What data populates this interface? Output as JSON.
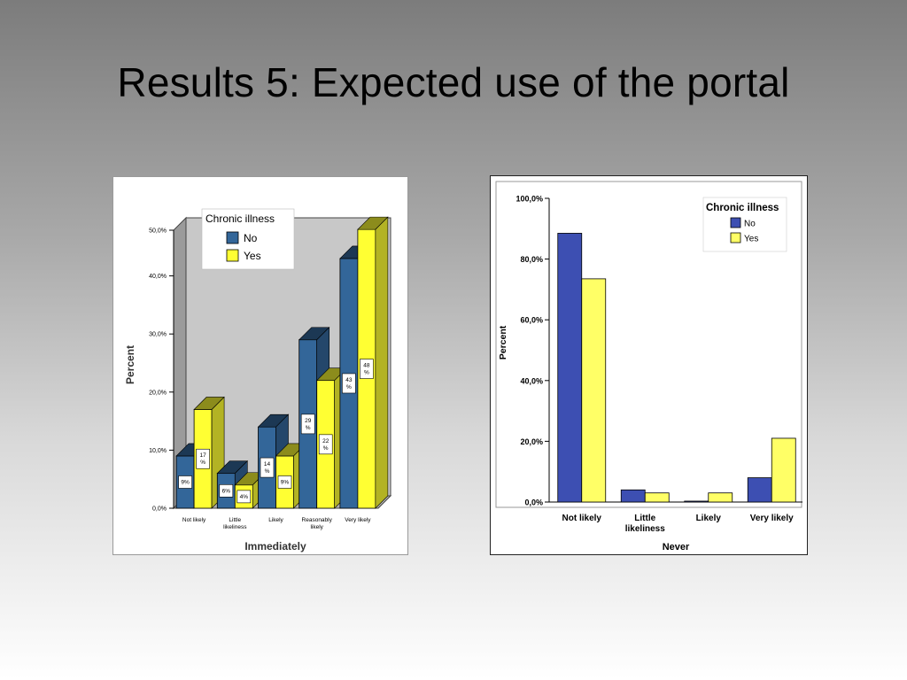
{
  "slide": {
    "title": "Results 5: Expected use of the portal"
  },
  "chart_data": [
    {
      "type": "bar",
      "title": "",
      "xlabel": "Immediately",
      "ylabel": "Percent",
      "ylim": [
        0,
        50
      ],
      "yticks": [
        "0,0%",
        "10,0%",
        "20,0%",
        "30,0%",
        "40,0%",
        "50,0%"
      ],
      "categories": [
        "Not likely",
        "Little likeliness",
        "Likely",
        "Reasonably likely",
        "Very likely"
      ],
      "category_labels": [
        [
          "Not likely"
        ],
        [
          "Little",
          "likeliness"
        ],
        [
          "Likely"
        ],
        [
          "Reasonably",
          "likely"
        ],
        [
          "Very likely"
        ]
      ],
      "legend_title": "Chronic illness",
      "legend_position": "top-left",
      "series": [
        {
          "name": "No",
          "color": "#336699",
          "values": [
            9,
            6,
            14,
            29,
            43
          ],
          "labels": [
            [
              "9%"
            ],
            [
              "6%"
            ],
            [
              "14",
              "%"
            ],
            [
              "29",
              "%"
            ],
            [
              "43",
              "%"
            ]
          ]
        },
        {
          "name": "Yes",
          "color": "#ffff33",
          "values": [
            17,
            4,
            9,
            22,
            48
          ],
          "labels": [
            [
              "17",
              "%"
            ],
            [
              "4%"
            ],
            [
              "9%"
            ],
            [
              "22",
              "%"
            ],
            [
              "48",
              "%"
            ]
          ]
        }
      ],
      "grid": false,
      "style": "3d"
    },
    {
      "type": "bar",
      "title": "",
      "xlabel": "Never",
      "ylabel": "Percent",
      "ylim": [
        0,
        100
      ],
      "yticks": [
        "0,0%",
        "20,0%",
        "40,0%",
        "60,0%",
        "80,0%",
        "100,0%"
      ],
      "categories": [
        "Not likely",
        "Little likeliness",
        "Likely",
        "Very likely"
      ],
      "category_labels": [
        [
          "Not likely"
        ],
        [
          "Little",
          "likeliness"
        ],
        [
          "Likely"
        ],
        [
          "Very likely"
        ]
      ],
      "legend_title": "Chronic illness",
      "legend_position": "top-right",
      "series": [
        {
          "name": "No",
          "color": "#3d4fb2",
          "values": [
            88.5,
            4,
            0.3,
            8
          ]
        },
        {
          "name": "Yes",
          "color": "#ffff66",
          "values": [
            73.5,
            3,
            3,
            21
          ]
        }
      ],
      "grid": false
    }
  ]
}
